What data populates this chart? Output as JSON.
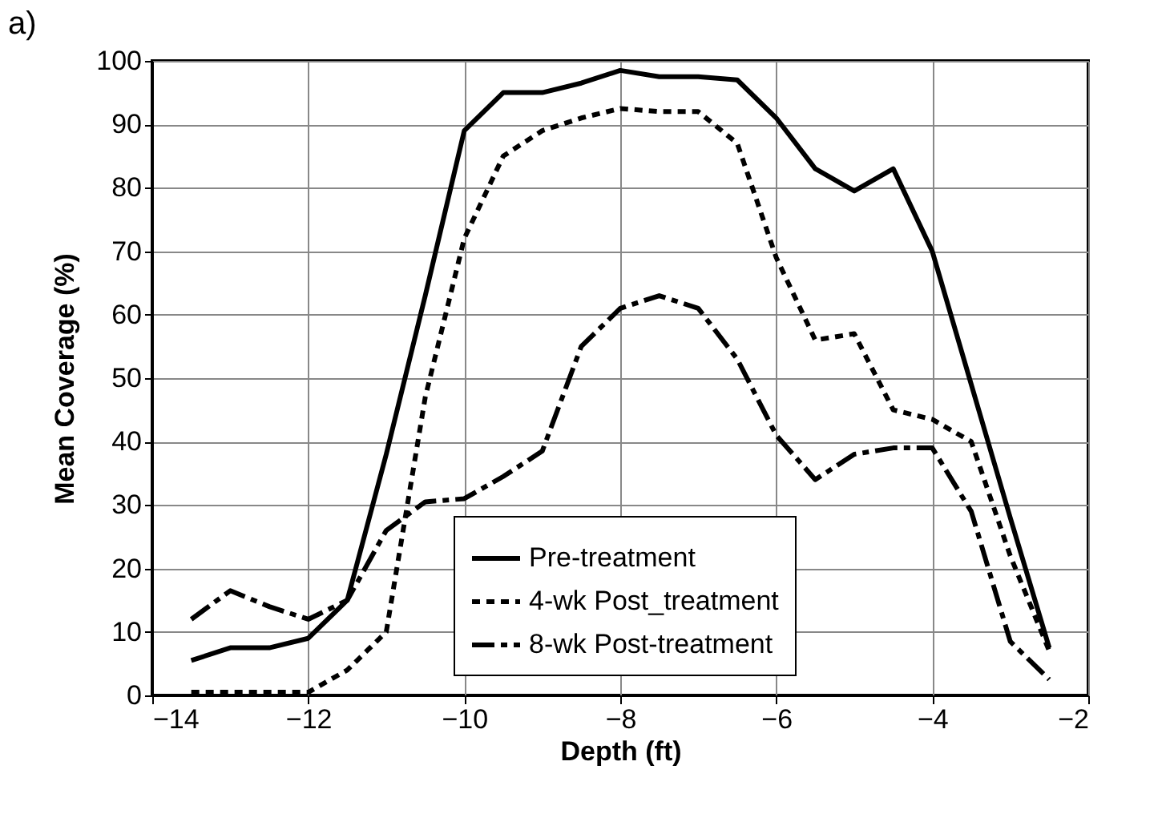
{
  "chart_data": {
    "type": "line",
    "title": "a)",
    "xlabel": "Depth (ft)",
    "ylabel": "Mean Coverage (%)",
    "x": [
      -13.5,
      -13,
      -12.5,
      -12,
      -11.5,
      -11,
      -10.5,
      -10,
      -9.5,
      -9,
      -8.5,
      -8,
      -7.5,
      -7,
      -6.5,
      -6,
      -5.5,
      -5,
      -4.5,
      -4,
      -3.5,
      -3,
      -2.5
    ],
    "series": [
      {
        "name": "Pre-treatment",
        "color": "#000000",
        "line_style": "solid",
        "values": [
          5.5,
          7.5,
          7.5,
          9,
          15,
          38,
          63,
          89,
          95,
          95,
          96.5,
          98.5,
          97.5,
          97.5,
          97,
          91,
          83,
          79.5,
          83,
          70,
          49,
          28,
          7.5
        ]
      },
      {
        "name": "4-wk Post_treatment",
        "color": "#000000",
        "line_style": "dotted",
        "values": [
          0.5,
          0.5,
          0.5,
          0.5,
          4,
          10,
          47,
          72,
          85,
          89,
          91,
          92.5,
          92,
          92,
          87,
          69,
          56,
          57,
          45,
          43.5,
          40,
          22,
          7
        ]
      },
      {
        "name": "8-wk Post-treatment",
        "color": "#000000",
        "line_style": "dashdot",
        "values": [
          12,
          16.5,
          14,
          12,
          15,
          26,
          30.5,
          31,
          34.5,
          38.5,
          55,
          61,
          63,
          61,
          53,
          41,
          34,
          38,
          39,
          39,
          29,
          8.5,
          2.5
        ]
      }
    ],
    "xlim": [
      -14,
      -2
    ],
    "xticks": [
      -14,
      -12,
      -10,
      -8,
      -6,
      -4,
      -2
    ],
    "ylim": [
      0,
      100
    ],
    "yticks": [
      0,
      10,
      20,
      30,
      40,
      50,
      60,
      70,
      80,
      90,
      100
    ],
    "grid": true,
    "legend": "bottom",
    "marker": "none"
  }
}
